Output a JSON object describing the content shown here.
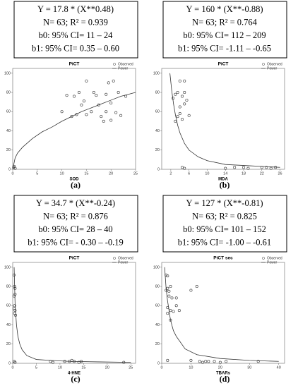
{
  "chart_data": [
    {
      "type": "scatter",
      "title": "PiCT",
      "x_label": "SOD",
      "panel_label": "(a)",
      "annotations": [
        "Y = 17.8 * (X**0.48)",
        "N= 63; R² = 0.939",
        "b0: 95% CI= 11 – 24",
        "b1: 95% CI= 0.35 – 0.60"
      ],
      "xlim": [
        0,
        25
      ],
      "xticks": [
        0,
        5,
        10,
        15,
        20,
        25
      ],
      "ylim": [
        0,
        105
      ],
      "yticks": [
        0,
        20,
        40,
        60,
        80,
        100
      ],
      "legend": "upper right",
      "series": [
        {
          "name": "Observed",
          "color": "#333333",
          "x": [
            0.2,
            0.3,
            0.5,
            10,
            11,
            12,
            12.5,
            13,
            13.5,
            14,
            14.5,
            15,
            15,
            16,
            16.5,
            17,
            17.5,
            18,
            18.5,
            19,
            19,
            19.5,
            20,
            20,
            20.5,
            21,
            21.5,
            22,
            23
          ],
          "values": [
            2,
            3,
            1,
            60,
            77,
            55,
            76,
            57,
            80,
            67,
            71,
            57,
            92,
            60,
            80,
            77,
            67,
            55,
            50,
            60,
            78,
            90,
            51,
            69,
            92,
            59,
            80,
            56,
            76
          ]
        },
        {
          "name": "Power",
          "color": "#333333",
          "x": [
            0,
            0.5,
            1,
            2,
            4,
            6,
            8,
            10,
            12,
            14,
            16,
            18,
            20,
            22,
            25
          ],
          "values": [
            0,
            12,
            17,
            23,
            32,
            39,
            44,
            50,
            55,
            60,
            64,
            68,
            72,
            76,
            80
          ]
        }
      ]
    },
    {
      "type": "scatter",
      "title": "PiCT",
      "x_label": "MDA",
      "panel_label": "(b)",
      "annotations": [
        "Y = 160 * (X**-0.88)",
        "N= 63; R² = 0.764",
        "b0: 95% CI= 112 – 209",
        "b1: 95% CI= -1.11 – -0.65"
      ],
      "xlim": [
        0,
        27
      ],
      "xticks": [
        2,
        6,
        10,
        14,
        18,
        22,
        26
      ],
      "ylim": [
        0,
        105
      ],
      "yticks": [
        0,
        20,
        40,
        60,
        80,
        100
      ],
      "legend": "upper right",
      "series": [
        {
          "name": "Observed",
          "color": "#333333",
          "x": [
            2.5,
            3,
            3,
            3.5,
            3.5,
            4,
            4,
            4,
            4.5,
            4.5,
            5,
            5,
            5,
            5.5,
            6,
            4.5,
            5,
            14,
            16,
            18,
            19,
            22,
            23,
            24,
            25
          ],
          "values": [
            74,
            78,
            50,
            80,
            55,
            92,
            65,
            58,
            76,
            52,
            92,
            80,
            68,
            72,
            56,
            2,
            1,
            1,
            2,
            2,
            1,
            2,
            2,
            1,
            2
          ]
        },
        {
          "name": "Power",
          "color": "#333333",
          "x": [
            1.8,
            2.2,
            2.6,
            3,
            3.5,
            4,
            5,
            6,
            8,
            10,
            14,
            18,
            22,
            26
          ],
          "values": [
            100,
            82,
            68,
            57,
            46,
            38,
            27,
            20,
            13,
            9,
            5,
            4,
            3,
            2
          ]
        }
      ]
    },
    {
      "type": "scatter",
      "title": "PiCT",
      "x_label": "4-HNE",
      "panel_label": "(c)",
      "annotations": [
        "Y = 34.7 * (X**-0.24)",
        "N= 63; R² = 0.876",
        "b0: 95% CI= 28 – 40",
        "b1: 95% CI= - 0.30 – -0.19"
      ],
      "xlim": [
        0,
        26
      ],
      "xticks": [
        0,
        5,
        10,
        15,
        20,
        25
      ],
      "ylim": [
        0,
        105
      ],
      "yticks": [
        0,
        20,
        40,
        60,
        80,
        100
      ],
      "legend": "upper right",
      "series": [
        {
          "name": "Observed",
          "color": "#333333",
          "x": [
            0.3,
            0.4,
            0.5,
            0.3,
            0.5,
            0.4,
            0.3,
            0.5,
            0.4,
            0.6,
            0.3,
            0.5,
            8,
            8.5,
            11,
            12,
            12.5,
            13,
            14,
            14.5,
            23.5
          ],
          "values": [
            92,
            80,
            78,
            70,
            72,
            60,
            57,
            55,
            52,
            50,
            2,
            1,
            2,
            1,
            2,
            2,
            3,
            2,
            1,
            2,
            1
          ]
        },
        {
          "name": "Power",
          "color": "#333333",
          "x": [
            0.3,
            0.5,
            0.8,
            1.1,
            1.5,
            2,
            3,
            5,
            8,
            12,
            18,
            25
          ],
          "values": [
            100,
            62,
            40,
            28,
            20,
            14,
            8,
            4,
            3,
            2,
            1.5,
            1
          ]
        }
      ]
    },
    {
      "type": "scatter",
      "title": "PiCT sec",
      "x_label": "TBARs",
      "panel_label": "(d)",
      "annotations": [
        "Y = 127 * (X**-0.81)",
        "N= 63; R² = 0.825",
        "b0: 95% CI= 101 – 152",
        "b1: 95% CI= -1.00 – -0.61"
      ],
      "xlim": [
        0,
        42
      ],
      "xticks": [
        0,
        10,
        20,
        30,
        40
      ],
      "ylim": [
        0,
        105
      ],
      "yticks": [
        0,
        20,
        40,
        60,
        80,
        100
      ],
      "legend": "upper right",
      "series": [
        {
          "name": "Observed",
          "color": "#333333",
          "x": [
            1.5,
            2,
            2,
            1.5,
            2.5,
            3,
            2.5,
            3.5,
            2,
            3,
            2,
            4,
            5,
            5,
            3,
            6,
            10,
            12,
            2,
            10,
            13,
            14,
            15,
            16,
            18,
            20,
            22,
            33
          ],
          "values": [
            92,
            91,
            78,
            76,
            75,
            80,
            70,
            68,
            58,
            55,
            52,
            54,
            60,
            68,
            45,
            55,
            76,
            80,
            3,
            3,
            2,
            1,
            2,
            2,
            2,
            1,
            2,
            2
          ]
        },
        {
          "name": "Power",
          "color": "#333333",
          "x": [
            1,
            1.5,
            2,
            3,
            4,
            5,
            8,
            12,
            20,
            30,
            40
          ],
          "values": [
            100,
            78,
            65,
            45,
            34,
            28,
            15,
            9,
            5,
            3,
            2
          ]
        }
      ]
    }
  ]
}
